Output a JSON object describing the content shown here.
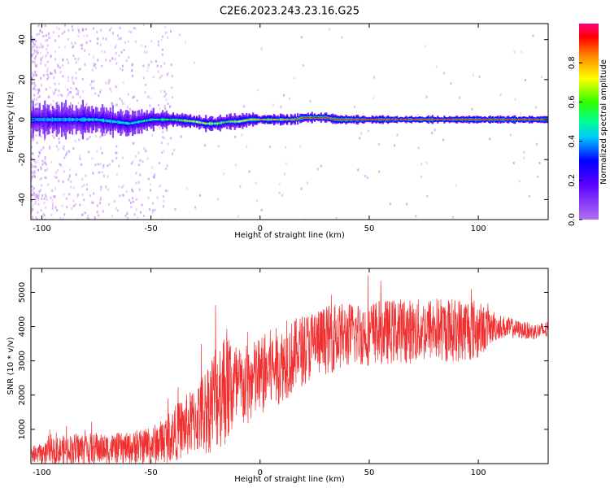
{
  "title": "C2E6.2023.243.23.16.G25",
  "colors": {
    "snr_line": "#f03030",
    "spectrogram_scatter": "#b070f0",
    "spectrogram_band_blue": "#2020e0",
    "spectrogram_center_red": "#ff2020"
  },
  "chart_data": [
    {
      "type": "heatmap",
      "name": "spectrogram",
      "xlabel": "Height of straight line (km)",
      "ylabel": "Frequency (Hz)",
      "xlim": [
        -105,
        132
      ],
      "ylim": [
        -50,
        48
      ],
      "x_ticks": [
        -100,
        -50,
        0,
        50,
        100
      ],
      "x_tick_labels": [
        "-100",
        "-50",
        "0",
        "50",
        "100"
      ],
      "y_ticks": [
        -40,
        -20,
        0,
        20,
        40
      ],
      "y_tick_labels": [
        "-40",
        "-20",
        "0",
        "20",
        "40"
      ],
      "grid": false,
      "colorbar": {
        "label": "Normalized spectral amplitude",
        "range": [
          0.0,
          1.0
        ],
        "ticks": [
          0.0,
          0.2,
          0.4,
          0.6,
          0.8
        ],
        "tick_labels": [
          "0.0",
          "0.2",
          "0.4",
          "0.6",
          "0.8"
        ],
        "colormap": "rainbow (violet-blue-cyan-green-yellow-red-magenta)"
      },
      "band": {
        "x": [
          -105,
          -90,
          -75,
          -60,
          -50,
          -40,
          -30,
          -25,
          -20,
          -15,
          -10,
          -5,
          0,
          5,
          10,
          15,
          20,
          25,
          30,
          35,
          40,
          50,
          60,
          70,
          80,
          90,
          100,
          110,
          120,
          132
        ],
        "center_freq_hz": [
          0,
          0,
          0,
          -2,
          0,
          0,
          -1,
          -2,
          -2,
          -1,
          -1,
          0,
          0,
          0,
          0,
          0,
          1,
          1,
          1,
          0,
          0,
          0,
          0,
          0,
          0,
          0,
          0,
          0,
          0,
          0
        ],
        "half_width_hz": [
          7,
          7,
          6,
          5,
          4,
          3,
          3,
          3,
          3,
          3,
          3,
          3,
          2,
          2,
          2,
          2,
          2,
          2,
          2,
          2,
          2,
          1.5,
          1.5,
          1.5,
          1.5,
          1.5,
          1.5,
          1.5,
          1.5,
          1.5
        ],
        "peak_amplitude": [
          0.4,
          0.4,
          0.45,
          0.45,
          0.5,
          0.6,
          0.7,
          0.7,
          0.65,
          0.6,
          0.7,
          0.75,
          0.8,
          0.8,
          0.8,
          0.85,
          0.9,
          0.9,
          0.9,
          0.9,
          0.95,
          0.95,
          0.95,
          0.95,
          0.95,
          0.95,
          0.95,
          0.95,
          0.95,
          0.95
        ]
      }
    },
    {
      "type": "line",
      "name": "snr",
      "xlabel": "Height of straight line (km)",
      "ylabel": "SNR (10 * v/v)",
      "xlim": [
        -105,
        132
      ],
      "ylim": [
        0,
        5700
      ],
      "x_ticks": [
        -100,
        -50,
        0,
        50,
        100
      ],
      "x_tick_labels": [
        "-100",
        "-50",
        "0",
        "50",
        "100"
      ],
      "y_ticks": [
        1000,
        2000,
        3000,
        4000,
        5000
      ],
      "y_tick_labels": [
        "1000",
        "2000",
        "3000",
        "4000",
        "5000"
      ],
      "grid": false,
      "series": [
        {
          "x": [
            -105,
            -100,
            -95,
            -90,
            -85,
            -80,
            -75,
            -70,
            -65,
            -60,
            -55,
            -50,
            -45,
            -40,
            -35,
            -30,
            -25,
            -20,
            -15,
            -10,
            -5,
            0,
            5,
            10,
            15,
            20,
            25,
            30,
            35,
            40,
            45,
            50,
            55,
            60,
            65,
            70,
            75,
            80,
            85,
            90,
            95,
            100,
            105,
            110,
            115,
            120,
            125,
            132
          ],
          "mean": [
            250,
            300,
            350,
            380,
            400,
            420,
            420,
            430,
            450,
            450,
            480,
            520,
            650,
            850,
            1050,
            1250,
            1550,
            2000,
            2300,
            2150,
            2300,
            2550,
            2750,
            2900,
            3100,
            3350,
            3500,
            3600,
            3700,
            3750,
            3800,
            3800,
            3850,
            3850,
            3900,
            3850,
            3900,
            3950,
            3900,
            3900,
            3950,
            3900,
            3950,
            4000,
            3950,
            3900,
            3850,
            3900
          ],
          "amplitude": [
            250,
            300,
            400,
            450,
            500,
            500,
            450,
            450,
            450,
            450,
            500,
            550,
            650,
            800,
            900,
            1000,
            1300,
            1600,
            1800,
            1300,
            1200,
            1200,
            1200,
            1100,
            1100,
            1050,
            1050,
            1000,
            1000,
            950,
            950,
            950,
            950,
            950,
            950,
            950,
            950,
            950,
            950,
            950,
            950,
            900,
            500,
            350,
            300,
            250,
            250,
            250
          ]
        }
      ]
    }
  ]
}
